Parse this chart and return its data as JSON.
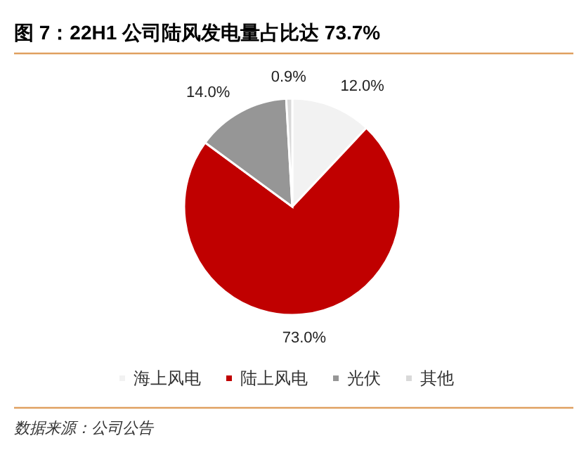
{
  "chart_data": {
    "type": "pie",
    "title": "图 7：22H1 公司陆风发电量占比达 73.7%",
    "categories": [
      "海上风电",
      "陆上风电",
      "光伏",
      "其他"
    ],
    "values": [
      12.0,
      73.0,
      14.0,
      0.9
    ],
    "colors": [
      "#f2f2f2",
      "#c00000",
      "#969696",
      "#d9d9d9"
    ],
    "value_labels": [
      "12.0%",
      "73.0%",
      "14.0%",
      "0.9%"
    ],
    "legend": "bottom",
    "annotations": [
      "数据来源：公司公告"
    ]
  }
}
